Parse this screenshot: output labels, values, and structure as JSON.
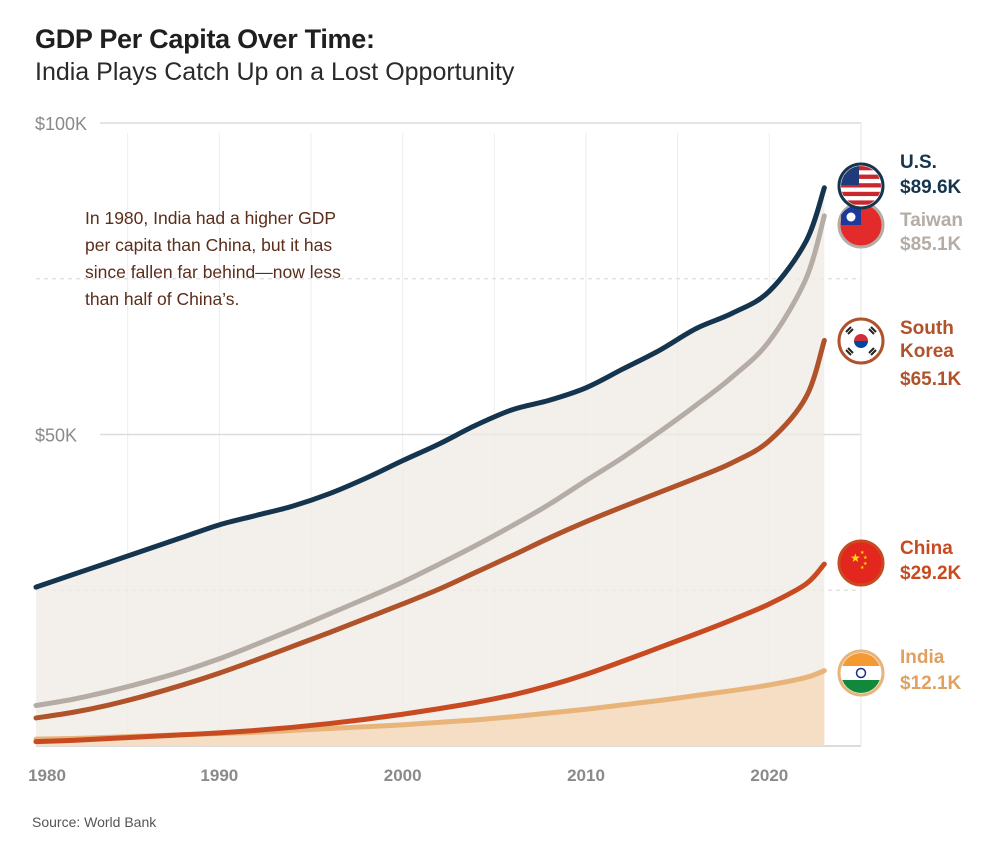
{
  "header": {
    "title": "GDP Per Capita Over Time:",
    "subtitle": "India Plays Catch Up on a Lost Opportunity"
  },
  "source": "Source: World Bank",
  "annotation": [
    "In 1980, India had a higher GDP",
    "per capita than China, but it has",
    "since fallen far behind—now less",
    "than half of China’s."
  ],
  "colors": {
    "us": "#15354f",
    "taiwan": "#b5aca5",
    "south_korea": "#b0522a",
    "china": "#c84a20",
    "india": "#e8b47a",
    "area_fill": "#efe9e4",
    "india_fill": "#f5dcc0"
  },
  "chart_data": {
    "type": "line",
    "title": "GDP Per Capita Over Time:",
    "subtitle": "India Plays Catch Up on a Lost Opportunity",
    "xlabel": "",
    "ylabel": "",
    "xlim": [
      1980,
      2025
    ],
    "ylim": [
      0,
      100000
    ],
    "x_ticks": [
      1980,
      1990,
      2000,
      2010,
      2020
    ],
    "x_tick_labels": [
      "1980",
      "1990",
      "2000",
      "2010",
      "2020"
    ],
    "y_ticks": [
      50000,
      100000
    ],
    "y_tick_labels": [
      "$50K",
      "$100K"
    ],
    "years": [
      1980,
      1982,
      1984,
      1986,
      1988,
      1990,
      1992,
      1994,
      1996,
      1998,
      2000,
      2002,
      2004,
      2006,
      2008,
      2010,
      2012,
      2014,
      2016,
      2018,
      2020,
      2022,
      2023
    ],
    "series": [
      {
        "name": "U.S.",
        "key": "us",
        "label_lines": [
          "U.S."
        ],
        "value_label": "$89.6K",
        "flag": "us-flag",
        "values": [
          25500,
          27500,
          29500,
          31500,
          33500,
          35500,
          37000,
          38500,
          40500,
          43000,
          45800,
          48500,
          51500,
          54000,
          55500,
          57500,
          60500,
          63500,
          67000,
          69500,
          73000,
          81000,
          89600
        ]
      },
      {
        "name": "Taiwan",
        "key": "taiwan",
        "label_lines": [
          "Taiwan"
        ],
        "value_label": "$85.1K",
        "flag": "taiwan-flag",
        "values": [
          6500,
          7500,
          8800,
          10300,
          12000,
          14000,
          16300,
          18700,
          21200,
          23700,
          26300,
          29200,
          32200,
          35400,
          38800,
          42600,
          46300,
          50400,
          54700,
          59300,
          65000,
          75000,
          85100
        ]
      },
      {
        "name": "South Korea",
        "key": "south_korea",
        "label_lines": [
          "South",
          "Korea"
        ],
        "value_label": "$65.1K",
        "flag": "korea-flag",
        "values": [
          4500,
          5400,
          6600,
          8100,
          9800,
          11700,
          13800,
          16000,
          18200,
          20500,
          22800,
          25200,
          27900,
          30600,
          33400,
          36000,
          38400,
          40700,
          43000,
          45500,
          49000,
          56000,
          65100
        ]
      },
      {
        "name": "China",
        "key": "china",
        "label_lines": [
          "China"
        ],
        "value_label": "$29.2K",
        "flag": "china-flag",
        "values": [
          700,
          900,
          1200,
          1500,
          1800,
          2100,
          2500,
          3000,
          3600,
          4300,
          5100,
          6000,
          7000,
          8200,
          9700,
          11500,
          13600,
          15800,
          18000,
          20300,
          22800,
          26000,
          29200
        ]
      },
      {
        "name": "India",
        "key": "india",
        "label_lines": [
          "India"
        ],
        "value_label": "$12.1K",
        "flag": "india-flag",
        "values": [
          1100,
          1200,
          1400,
          1600,
          1800,
          2000,
          2200,
          2500,
          2800,
          3100,
          3400,
          3800,
          4200,
          4700,
          5300,
          5900,
          6600,
          7300,
          8100,
          8900,
          9800,
          11000,
          12100
        ]
      }
    ]
  }
}
